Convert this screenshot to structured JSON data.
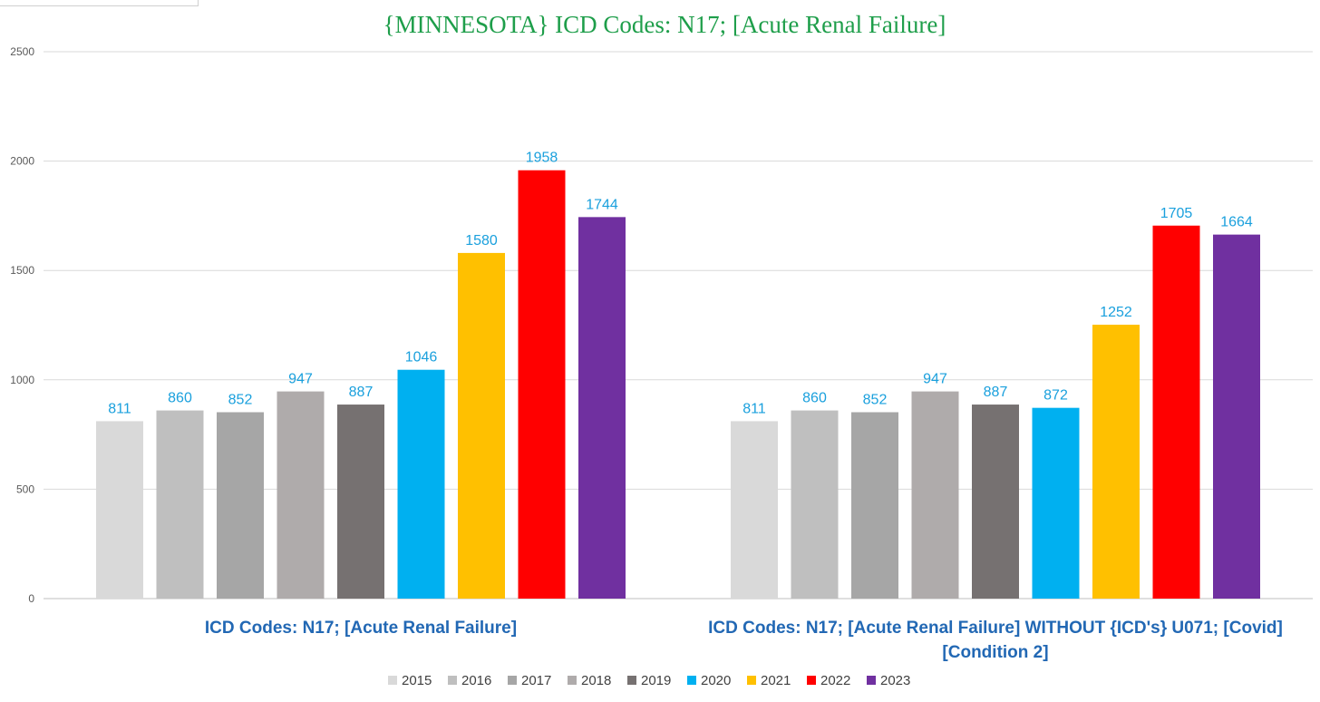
{
  "chart_data": {
    "type": "bar",
    "title": "{MINNESOTA}  ICD Codes: N17;  [Acute Renal Failure]",
    "categories": [
      [
        "ICD Codes: N17;  [Acute Renal Failure]"
      ],
      [
        "ICD Codes: N17;  [Acute Renal Failure]  WITHOUT {ICD's} U071;  [Covid]",
        "[Condition 2]"
      ]
    ],
    "series": [
      {
        "name": "2015",
        "color": "#d9d9d9",
        "values": [
          811,
          811
        ]
      },
      {
        "name": "2016",
        "color": "#bfbfbf",
        "values": [
          860,
          860
        ]
      },
      {
        "name": "2017",
        "color": "#a6a6a6",
        "values": [
          852,
          852
        ]
      },
      {
        "name": "2018",
        "color": "#afabab",
        "values": [
          947,
          947
        ]
      },
      {
        "name": "2019",
        "color": "#767171",
        "values": [
          887,
          887
        ]
      },
      {
        "name": "2020",
        "color": "#00b0f0",
        "values": [
          1046,
          872
        ]
      },
      {
        "name": "2021",
        "color": "#ffc000",
        "values": [
          1580,
          1252
        ]
      },
      {
        "name": "2022",
        "color": "#ff0000",
        "values": [
          1958,
          1705
        ]
      },
      {
        "name": "2023",
        "color": "#7030a0",
        "values": [
          1744,
          1664
        ]
      }
    ],
    "yticks": [
      "0",
      "500",
      "1000",
      "1500",
      "2000",
      "2500"
    ],
    "ylim": [
      0,
      2500
    ],
    "grid": true,
    "legend": "bottom-center",
    "xlabel": "",
    "ylabel": ""
  }
}
